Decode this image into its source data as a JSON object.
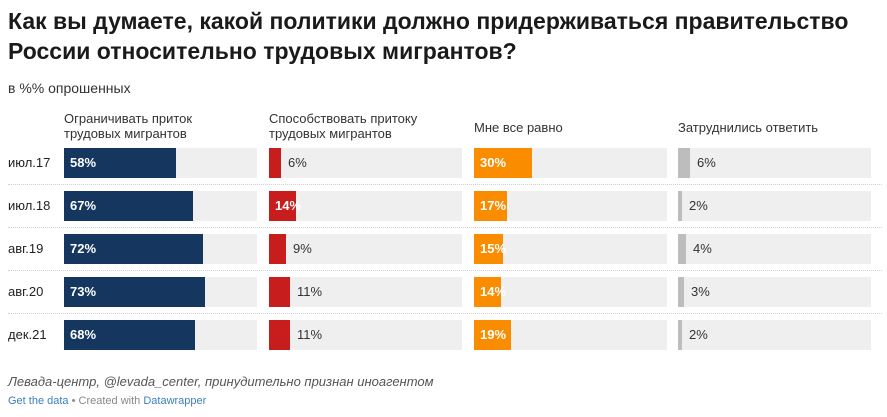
{
  "title": "Как вы думаете, какой политики должно придерживаться правительство России относительно трудовых мигрантов?",
  "subtitle": "в %% опрошенных",
  "source": "Левада-центр, @levada_center, принудительно признан иноагентом",
  "footer": {
    "get_data": "Get the data",
    "sep": " • Created with ",
    "tool": "Datawrapper"
  },
  "chart_data": {
    "type": "bar",
    "title": "Как вы думаете, какой политики должно придерживаться правительство России относительно трудовых мигрантов?",
    "ylabel": "в %% опрошенных",
    "categories": [
      "июл.17",
      "июл.18",
      "авг.19",
      "авг.20",
      "дек.21"
    ],
    "xlim": [
      0,
      100
    ],
    "series": [
      {
        "name": "Ограничивать приток трудовых мигрантов",
        "color": "#15375f",
        "values": [
          58,
          67,
          72,
          73,
          68
        ]
      },
      {
        "name": "Способствовать притоку трудовых мигрантов",
        "color": "#c71e1d",
        "values": [
          6,
          14,
          9,
          11,
          11
        ]
      },
      {
        "name": "Мне все равно",
        "color": "#fa8c00",
        "values": [
          30,
          17,
          15,
          14,
          19
        ]
      },
      {
        "name": "Затруднились ответить",
        "color": "#bdbdbd",
        "values": [
          6,
          2,
          4,
          3,
          2
        ]
      }
    ],
    "labels": [
      [
        "58%",
        "6%",
        "30%",
        "6%"
      ],
      [
        "67%",
        "14%",
        "17%",
        "2%"
      ],
      [
        "72%",
        "9%",
        "15%",
        "4%"
      ],
      [
        "73%",
        "11%",
        "14%",
        "3%"
      ],
      [
        "68%",
        "11%",
        "19%",
        "2%"
      ]
    ]
  }
}
